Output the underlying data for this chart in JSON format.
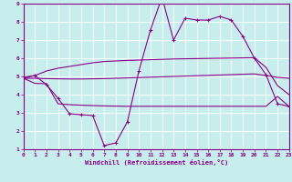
{
  "xlabel": "Windchill (Refroidissement éolien,°C)",
  "background_color": "#c8eded",
  "grid_color": "#ffffff",
  "line_color": "#880088",
  "xlim": [
    0,
    23
  ],
  "ylim": [
    1,
    9
  ],
  "xticks": [
    0,
    1,
    2,
    3,
    4,
    5,
    6,
    7,
    8,
    9,
    10,
    11,
    12,
    13,
    14,
    15,
    16,
    17,
    18,
    19,
    20,
    21,
    22,
    23
  ],
  "yticks": [
    1,
    2,
    3,
    4,
    5,
    6,
    7,
    8,
    9
  ],
  "line_upper": {
    "x": [
      0,
      1,
      2,
      3,
      4,
      5,
      6,
      7,
      8,
      9,
      10,
      11,
      12,
      13,
      14,
      15,
      16,
      17,
      18,
      19,
      20,
      21,
      22,
      23
    ],
    "y": [
      4.95,
      5.05,
      5.3,
      5.45,
      5.55,
      5.65,
      5.75,
      5.82,
      5.85,
      5.88,
      5.9,
      5.92,
      5.94,
      5.96,
      5.97,
      5.98,
      5.99,
      6.0,
      6.01,
      6.02,
      6.03,
      5.5,
      4.5,
      4.0
    ]
  },
  "line_mid": {
    "x": [
      0,
      1,
      2,
      3,
      4,
      5,
      6,
      7,
      8,
      9,
      10,
      11,
      12,
      13,
      14,
      15,
      16,
      17,
      18,
      19,
      20,
      21,
      22,
      23
    ],
    "y": [
      4.9,
      4.9,
      4.88,
      4.87,
      4.86,
      4.86,
      4.87,
      4.88,
      4.9,
      4.92,
      4.94,
      4.96,
      4.98,
      5.0,
      5.02,
      5.04,
      5.06,
      5.08,
      5.1,
      5.12,
      5.14,
      5.05,
      4.95,
      4.9
    ]
  },
  "line_peaked": {
    "x": [
      0,
      1,
      2,
      3,
      4,
      5,
      6,
      7,
      8,
      9,
      10,
      11,
      12,
      13,
      14,
      15,
      16,
      17,
      18,
      19,
      20,
      21,
      22,
      23
    ],
    "y": [
      4.9,
      5.05,
      4.55,
      3.8,
      2.95,
      2.9,
      2.85,
      1.2,
      1.35,
      2.5,
      5.3,
      7.55,
      9.35,
      7.0,
      8.2,
      8.1,
      8.1,
      8.3,
      8.1,
      7.2,
      6.0,
      5.1,
      3.5,
      3.35
    ]
  },
  "line_bottom": {
    "x": [
      0,
      1,
      2,
      3,
      4,
      5,
      6,
      7,
      8,
      9,
      10,
      11,
      12,
      13,
      14,
      15,
      16,
      17,
      18,
      19,
      20,
      21,
      22,
      23
    ],
    "y": [
      4.9,
      4.62,
      4.6,
      3.5,
      3.45,
      3.42,
      3.4,
      3.38,
      3.37,
      3.36,
      3.36,
      3.36,
      3.36,
      3.36,
      3.36,
      3.36,
      3.36,
      3.36,
      3.36,
      3.36,
      3.36,
      3.36,
      3.9,
      3.35
    ]
  }
}
